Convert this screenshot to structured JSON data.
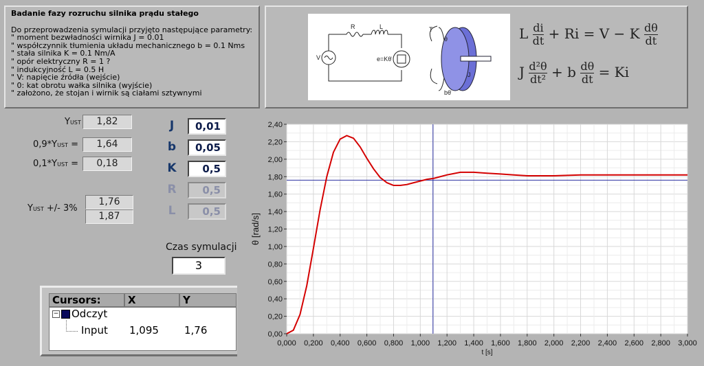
{
  "description": {
    "title": "Badanie fazy rozruchu silnika prądu stałego",
    "lines": [
      "Do przeprowadzenia symulacji przyjęto następujące parametry:",
      "\" moment bezwładności wirnika J = 0.01",
      "\" współczynnik tłumienia układu mechanicznego b = 0.1 Nms",
      "\" stała silnika K = 0.1 Nm/A",
      "\" opór elektryczny R = 1 ?",
      "\" indukcyjność L = 0.5 H",
      "\" V: napięcie źródła (wejście)",
      "\" 0: kat obrotu wałka silnika (wyjście)",
      "\" założono, że stojan i wirnik są ciałami sztywnymi"
    ]
  },
  "diagram": {
    "labels": {
      "R": "R",
      "L": "L",
      "V": "V",
      "emf": "e=Kθ̇",
      "T": "T",
      "theta": "θ",
      "J": "J",
      "btheta": "bθ̇",
      "plus": "+",
      "minus": "−"
    }
  },
  "equations": {
    "eq1": {
      "lhs_frac_num": "di",
      "lhs_frac_den": "dt",
      "pre": "L",
      "mid": "+ Ri = V − K",
      "rhs_frac_num": "dθ",
      "rhs_frac_den": "dt"
    },
    "eq2": {
      "pre": "J",
      "frac1_num": "d²θ",
      "frac1_den": "dt²",
      "mid": "+ b",
      "frac2_num": "dθ",
      "frac2_den": "dt",
      "post": "= Ki"
    }
  },
  "indicators": {
    "yust": {
      "label": "Y",
      "sub": "UST",
      "value": "1,82"
    },
    "y90": {
      "label_pre": "0,9*Y",
      "sub": "UST",
      "label_post": " =",
      "value": "1,64"
    },
    "y10": {
      "label_pre": "0,1*Y",
      "sub": "UST",
      "label_post": " =",
      "value": "0,18"
    },
    "band": {
      "label_pre": "Y",
      "sub": "UST",
      "label_post": " +/- 3%",
      "low": "1,76",
      "high": "1,87"
    }
  },
  "controls": [
    {
      "name": "J",
      "value": "0,01",
      "enabled": true
    },
    {
      "name": "b",
      "value": "0,05",
      "enabled": true
    },
    {
      "name": "K",
      "value": "0,5",
      "enabled": true
    },
    {
      "name": "R",
      "value": "0,5",
      "enabled": false
    },
    {
      "name": "L",
      "value": "0,5",
      "enabled": false
    }
  ],
  "simulation": {
    "label": "Czas symulacji",
    "value": "3"
  },
  "cursors": {
    "header": {
      "name": "Cursors:",
      "x": "X",
      "y": "Y"
    },
    "group": "Odczyt",
    "row": {
      "name": "Input",
      "x": "1,095",
      "y": "1,76"
    }
  },
  "colors": {
    "trace": "#d40000",
    "cursor": "#2a2fa0",
    "disk": "#6b6fd6"
  },
  "chart_data": {
    "type": "line",
    "xlabel": "t [s]",
    "ylabel": "θ [rad/s]",
    "xlim": [
      0,
      3
    ],
    "ylim": [
      0,
      2.4
    ],
    "xticks": [
      "0,000",
      "0,200",
      "0,400",
      "0,600",
      "0,800",
      "1,000",
      "1,200",
      "1,400",
      "1,600",
      "1,800",
      "2,000",
      "2,200",
      "2,400",
      "2,600",
      "2,800",
      "3,000"
    ],
    "yticks": [
      "0,00",
      "0,20",
      "0,40",
      "0,60",
      "0,80",
      "1,00",
      "1,20",
      "1,40",
      "1,60",
      "1,80",
      "2,00",
      "2,20",
      "2,40"
    ],
    "grid": true,
    "series": [
      {
        "x": [
          0,
          0.05,
          0.1,
          0.15,
          0.2,
          0.25,
          0.3,
          0.35,
          0.4,
          0.45,
          0.5,
          0.55,
          0.6,
          0.65,
          0.7,
          0.75,
          0.8,
          0.85,
          0.9,
          0.95,
          1.0,
          1.05,
          1.1,
          1.2,
          1.3,
          1.4,
          1.5,
          1.6,
          1.7,
          1.8,
          1.9,
          2.0,
          2.2,
          2.4,
          2.6,
          2.8,
          3.0
        ],
        "y": [
          0,
          0.04,
          0.22,
          0.55,
          0.98,
          1.42,
          1.8,
          2.08,
          2.23,
          2.27,
          2.24,
          2.14,
          2.01,
          1.89,
          1.79,
          1.73,
          1.7,
          1.7,
          1.71,
          1.73,
          1.75,
          1.77,
          1.78,
          1.82,
          1.85,
          1.85,
          1.84,
          1.83,
          1.82,
          1.81,
          1.81,
          1.81,
          1.82,
          1.82,
          1.82,
          1.82,
          1.82
        ]
      }
    ],
    "cursor": {
      "x": 1.095,
      "y": 1.76
    }
  }
}
